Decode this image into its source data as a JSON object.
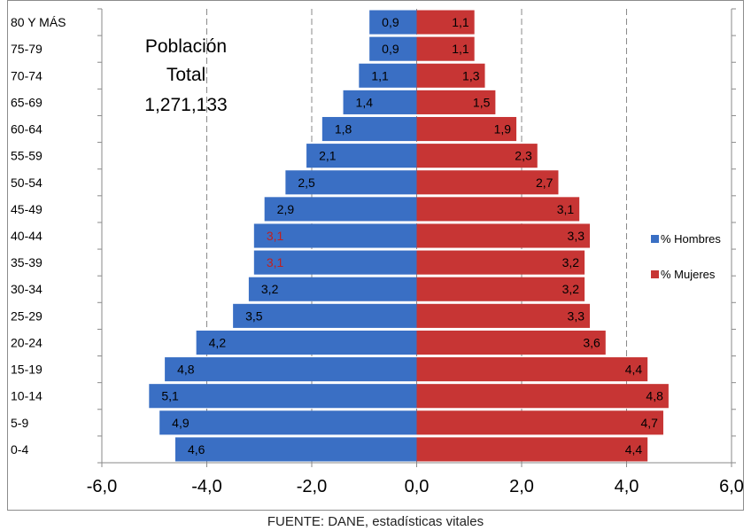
{
  "chart_data": {
    "type": "bar",
    "orientation": "horizontal",
    "categories": [
      "0-4",
      "5-9",
      "10-14",
      "15-19",
      "20-24",
      "25-29",
      "30-34",
      "35-39",
      "40-44",
      "45-49",
      "50-54",
      "55-59",
      "60-64",
      "65-69",
      "70-74",
      "75-79",
      "80 Y MÁS"
    ],
    "category_labels": [
      "0-4",
      "5-9",
      "10-14",
      "15-19",
      "20-24",
      "25-29",
      "30-34",
      "35-39",
      "40-44",
      "45-49",
      "50-54",
      "55-59",
      "60-64",
      "65-69",
      "70-74",
      "75-79",
      "80 Y MÁS"
    ],
    "series": [
      {
        "name": "% Hombres",
        "color": "#3a6fc4",
        "values": [
          -4.6,
          -4.9,
          -5.1,
          -4.8,
          -4.2,
          -3.5,
          -3.2,
          -3.1,
          -3.1,
          -2.9,
          -2.5,
          -2.1,
          -1.8,
          -1.4,
          -1.1,
          -0.9,
          -0.9
        ],
        "labels": [
          "4,6",
          "4,9",
          "5,1",
          "4,8",
          "4,2",
          "3,5",
          "3,2",
          "3,1",
          "3,1",
          "2,9",
          "2,5",
          "2,1",
          "1,8",
          "1,4",
          "1,1",
          "0,9",
          "0,9"
        ],
        "label_colors": [
          "#000000",
          "#000000",
          "#000000",
          "#000000",
          "#000000",
          "#000000",
          "#000000",
          "#c0201e",
          "#c0201e",
          "#000000",
          "#000000",
          "#000000",
          "#000000",
          "#000000",
          "#000000",
          "#000000",
          "#000000"
        ]
      },
      {
        "name": "% Mujeres",
        "color": "#c73534",
        "values": [
          4.4,
          4.7,
          4.8,
          4.4,
          3.6,
          3.3,
          3.2,
          3.2,
          3.3,
          3.1,
          2.7,
          2.3,
          1.9,
          1.5,
          1.3,
          1.1,
          1.1
        ],
        "labels": [
          "4,4",
          "4,7",
          "4,8",
          "4,4",
          "3,6",
          "3,3",
          "3,2",
          "3,2",
          "3,3",
          "3,1",
          "2,7",
          "2,3",
          "1,9",
          "1,5",
          "1,3",
          "1,1",
          "1,1"
        ],
        "label_colors": [
          "#000000",
          "#000000",
          "#000000",
          "#000000",
          "#000000",
          "#000000",
          "#000000",
          "#000000",
          "#000000",
          "#000000",
          "#000000",
          "#000000",
          "#000000",
          "#000000",
          "#000000",
          "#000000",
          "#000000"
        ]
      }
    ],
    "xlim": [
      -6,
      6
    ],
    "xticks": [
      -6,
      -4,
      -2,
      0,
      2,
      4,
      6
    ],
    "xtick_labels": [
      "-6,0",
      "-4,0",
      "-2,0",
      "0,0",
      "2,0",
      "4,0",
      "6,0"
    ],
    "grid": "vertical-dashed",
    "legend": "right",
    "annotation": [
      "Población",
      "Total",
      "1,271,133"
    ]
  },
  "legend": {
    "hombres": "% Hombres",
    "mujeres": "% Mujeres"
  },
  "source_note": "FUENTE: DANE, estadísticas vitales"
}
